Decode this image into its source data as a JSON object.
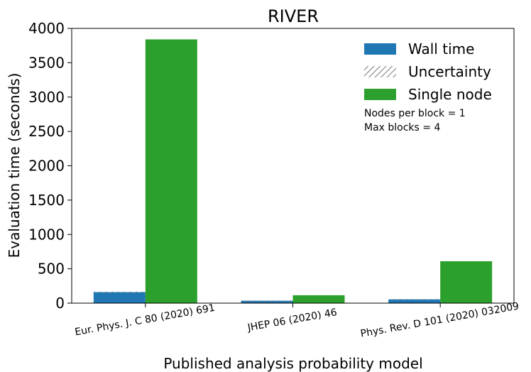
{
  "chart_data": {
    "type": "bar",
    "title": "RIVER",
    "xlabel": "Published analysis probability model",
    "ylabel": "Evaluation time (seconds)",
    "ylim": [
      0,
      4000
    ],
    "yticks": [
      0,
      500,
      1000,
      1500,
      2000,
      2500,
      3000,
      3500,
      4000
    ],
    "categories": [
      "Eur. Phys. J. C 80 (2020) 691",
      "JHEP 06 (2020) 46",
      "Phys. Rev. D 101 (2020) 032009"
    ],
    "series": [
      {
        "name": "Wall time",
        "values": [
          160,
          35,
          55
        ],
        "uncertainty": [
          8,
          3,
          4
        ],
        "color": "#1f77b4"
      },
      {
        "name": "Single node",
        "values": [
          3840,
          115,
          610
        ],
        "color": "#2ca02c"
      }
    ],
    "legend": {
      "placement": "top-right",
      "entries": [
        "Wall time",
        "Uncertainty",
        "Single node"
      ],
      "notes": [
        "Nodes per block = 1",
        "Max blocks = 4"
      ]
    },
    "grid": false
  }
}
